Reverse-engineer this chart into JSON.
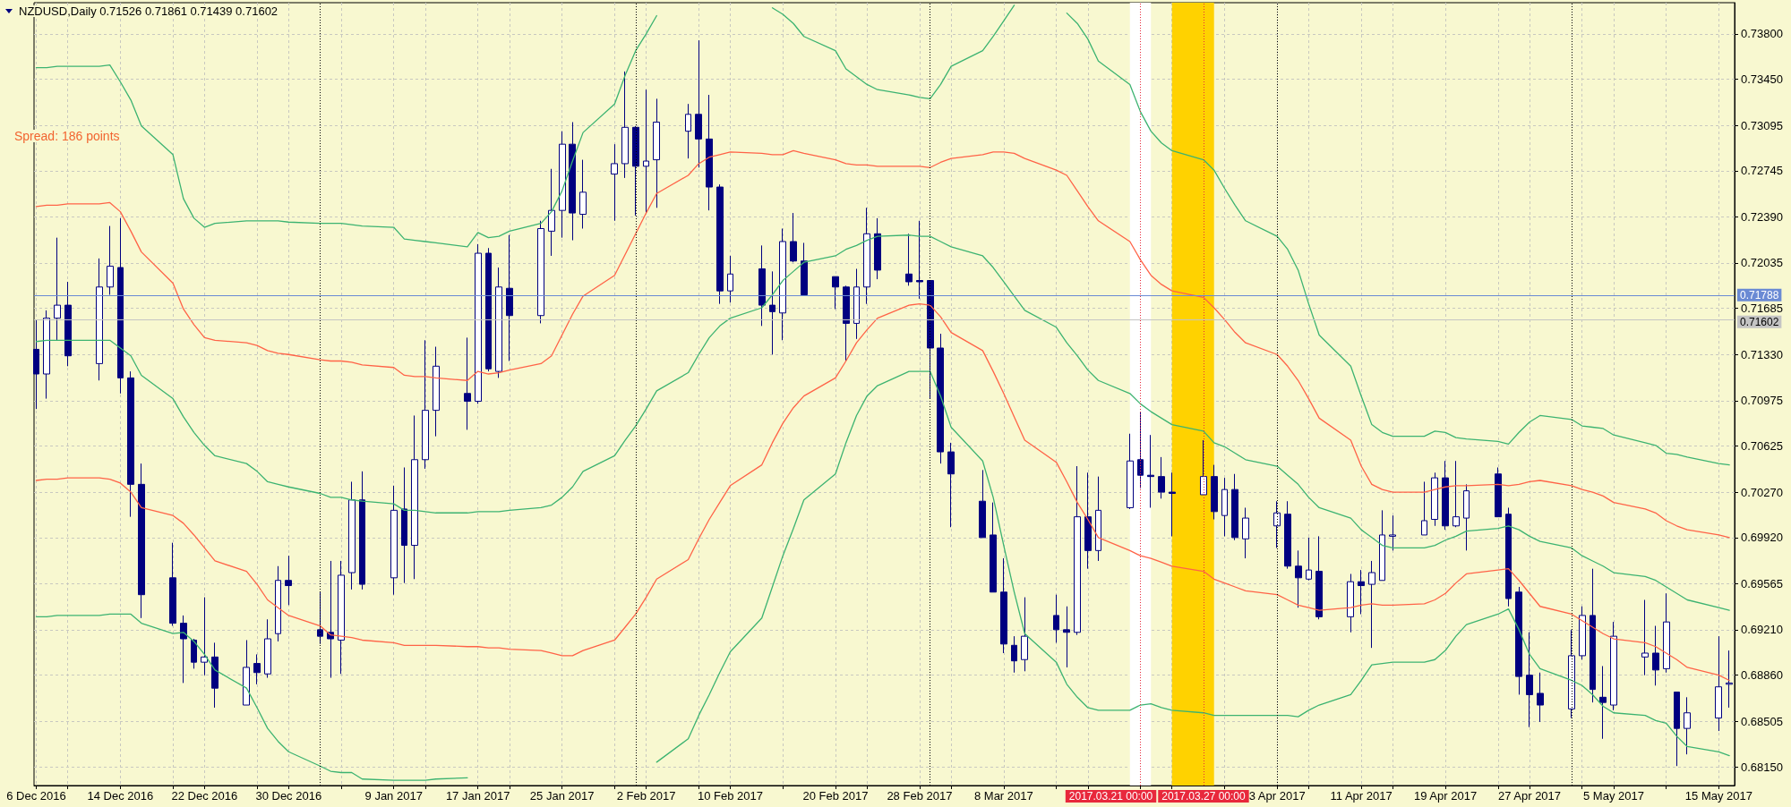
{
  "chart_data": {
    "type": "candlestick",
    "title": "NZDUSD,Daily 0.71526 0.71861 0.71439 0.71602",
    "annotations": [
      "Spread: 186 points"
    ],
    "x": [
      "2016-12-06",
      "2016-12-07",
      "2016-12-08",
      "2016-12-09",
      "2016-12-12",
      "2016-12-13",
      "2016-12-14",
      "2016-12-15",
      "2016-12-16",
      "2016-12-19",
      "2016-12-20",
      "2016-12-21",
      "2016-12-22",
      "2016-12-23",
      "2016-12-26",
      "2016-12-27",
      "2016-12-28",
      "2016-12-29",
      "2016-12-30",
      "2017-01-02",
      "2017-01-03",
      "2017-01-04",
      "2017-01-05",
      "2017-01-06",
      "2017-01-09",
      "2017-01-10",
      "2017-01-11",
      "2017-01-12",
      "2017-01-13",
      "2017-01-16",
      "2017-01-17",
      "2017-01-18",
      "2017-01-19",
      "2017-01-20",
      "2017-01-23",
      "2017-01-24",
      "2017-01-25",
      "2017-01-26",
      "2017-01-27",
      "2017-01-30",
      "2017-01-31",
      "2017-02-01",
      "2017-02-02",
      "2017-02-03",
      "2017-02-06",
      "2017-02-07",
      "2017-02-08",
      "2017-02-09",
      "2017-02-10",
      "2017-02-13",
      "2017-02-14",
      "2017-02-15",
      "2017-02-16",
      "2017-02-17",
      "2017-02-20",
      "2017-02-21",
      "2017-02-22",
      "2017-02-23",
      "2017-02-24",
      "2017-02-27",
      "2017-02-28",
      "2017-03-01",
      "2017-03-02",
      "2017-03-03",
      "2017-03-06",
      "2017-03-07",
      "2017-03-08",
      "2017-03-09",
      "2017-03-10",
      "2017-03-13",
      "2017-03-14",
      "2017-03-15",
      "2017-03-16",
      "2017-03-17",
      "2017-03-20",
      "2017-03-21",
      "2017-03-22",
      "2017-03-23",
      "2017-03-24",
      "2017-03-27",
      "2017-03-28",
      "2017-03-29",
      "2017-03-30",
      "2017-03-31",
      "2017-04-03",
      "2017-04-04",
      "2017-04-05",
      "2017-04-06",
      "2017-04-07",
      "2017-04-10",
      "2017-04-11",
      "2017-04-12",
      "2017-04-13",
      "2017-04-14",
      "2017-04-17",
      "2017-04-18",
      "2017-04-19",
      "2017-04-20",
      "2017-04-21",
      "2017-04-24",
      "2017-04-25",
      "2017-04-26",
      "2017-04-27",
      "2017-04-28",
      "2017-05-01",
      "2017-05-02",
      "2017-05-03",
      "2017-05-04",
      "2017-05-05",
      "2017-05-08",
      "2017-05-09",
      "2017-05-10",
      "2017-05-11",
      "2017-05-12",
      "2017-05-15",
      "2017-05-16"
    ],
    "xlim": [
      "2016-12-05T19:00",
      "2017-05-16T12:00"
    ],
    "xticks": [
      {
        "value": "2016-12-06",
        "label": "6 Dec 2016"
      },
      {
        "value": "2016-12-09",
        "label": null
      },
      {
        "value": "2016-12-14",
        "label": "14 Dec 2016"
      },
      {
        "value": "2016-12-19",
        "label": null
      },
      {
        "value": "2016-12-22",
        "label": "22 Dec 2016"
      },
      {
        "value": "2016-12-27",
        "label": null
      },
      {
        "value": "2016-12-30",
        "label": "30 Dec 2016"
      },
      {
        "value": "2017-01-04",
        "label": null
      },
      {
        "value": "2017-01-09",
        "label": "9 Jan 2017"
      },
      {
        "value": "2017-01-12",
        "label": null
      },
      {
        "value": "2017-01-17",
        "label": "17 Jan 2017"
      },
      {
        "value": "2017-01-20",
        "label": null
      },
      {
        "value": "2017-01-25",
        "label": "25 Jan 2017"
      },
      {
        "value": "2017-01-30",
        "label": null
      },
      {
        "value": "2017-02-02",
        "label": "2 Feb 2017"
      },
      {
        "value": "2017-02-07",
        "label": null
      },
      {
        "value": "2017-02-10",
        "label": "10 Feb 2017"
      },
      {
        "value": "2017-02-15",
        "label": null
      },
      {
        "value": "2017-02-20",
        "label": "20 Feb 2017"
      },
      {
        "value": "2017-02-23",
        "label": null
      },
      {
        "value": "2017-02-28",
        "label": "28 Feb 2017"
      },
      {
        "value": "2017-03-03",
        "label": null
      },
      {
        "value": "2017-03-08",
        "label": "8 Mar 2017"
      },
      {
        "value": "2017-03-13",
        "label": null
      },
      {
        "value": "2017-03-16",
        "label": null
      },
      {
        "value": "2017-03-21",
        "label": null
      },
      {
        "value": "2017-03-24",
        "label": null
      },
      {
        "value": "2017-03-29",
        "label": null
      },
      {
        "value": "2017-04-03",
        "label": "3 Apr 2017"
      },
      {
        "value": "2017-04-06",
        "label": null
      },
      {
        "value": "2017-04-11",
        "label": "11 Apr 2017"
      },
      {
        "value": "2017-04-14",
        "label": null
      },
      {
        "value": "2017-04-19",
        "label": "19 Apr 2017"
      },
      {
        "value": "2017-04-24",
        "label": null
      },
      {
        "value": "2017-04-27",
        "label": "27 Apr 2017"
      },
      {
        "value": "2017-05-02",
        "label": null
      },
      {
        "value": "2017-05-05",
        "label": "5 May 2017"
      },
      {
        "value": "2017-05-10",
        "label": null
      },
      {
        "value": "2017-05-15",
        "label": "15 May 2017"
      }
    ],
    "ylim": [
      0.6801,
      0.7404
    ],
    "yticks": [
      {
        "value": 0.738,
        "label": "0.73800"
      },
      {
        "value": 0.7345,
        "label": "0.73450"
      },
      0.73095,
      0.72745,
      {
        "value": 0.7239,
        "label": "0.72390"
      },
      0.72035,
      0.71685,
      {
        "value": 0.7133,
        "label": "0.71330"
      },
      0.70975,
      0.70625,
      {
        "value": 0.7027,
        "label": "0.70270"
      },
      {
        "value": 0.6992,
        "label": "0.69920"
      },
      0.69565,
      {
        "value": 0.6921,
        "label": "0.69210"
      },
      {
        "value": 0.6886,
        "label": "0.68860"
      },
      0.68505,
      {
        "value": 0.6815,
        "label": "0.68150"
      }
    ],
    "grid": true,
    "series": [
      {
        "color": "#000080",
        "colors": [
          "#000080",
          "#ffffff",
          "#ffffff",
          "#000080",
          "#ffffff",
          "#ffffff",
          "#000080",
          "#000080",
          "#000080",
          "#000080",
          "#000080",
          "#000080",
          "#ffffff",
          "#000080",
          "#ffffff",
          "#000080",
          "#ffffff",
          "#ffffff",
          "#000080",
          "#000080",
          "#000080",
          "#ffffff",
          "#ffffff",
          "#000080",
          "#ffffff",
          "#000080",
          "#ffffff",
          "#ffffff",
          "#ffffff",
          "#000080",
          "#ffffff",
          "#000080",
          "#ffffff",
          "#000080",
          "#ffffff",
          "#ffffff",
          "#ffffff",
          "#000080",
          "#ffffff",
          "#ffffff",
          "#ffffff",
          "#000080",
          "#ffffff",
          "#ffffff",
          "#ffffff",
          "#000080",
          "#000080",
          "#000080",
          "#ffffff",
          "#000080",
          "#000080",
          "#ffffff",
          "#000080",
          "#000080",
          "#000080",
          "#000080",
          "#ffffff",
          "#ffffff",
          "#000080",
          "#000080",
          "#000080",
          "#000080",
          "#000080",
          "#000080",
          "#000080",
          "#000080",
          "#000080",
          "#000080",
          "#ffffff",
          "#000080",
          "#000080",
          "#ffffff",
          "#000080",
          "#ffffff",
          "#ffffff",
          "#000080",
          "#000080",
          "#000080",
          "#000080",
          "#ffffff",
          "#000080",
          "#ffffff",
          "#000080",
          "#ffffff",
          "#ffffff",
          "#000080",
          "#000080",
          "#ffffff",
          "#000080",
          "#ffffff",
          "#000080",
          "#ffffff",
          "#ffffff",
          "#ffffff",
          "#ffffff",
          "#ffffff",
          "#000080",
          "#ffffff",
          "#ffffff",
          "#000080",
          "#000080",
          "#000080",
          "#000080",
          "#000080",
          "#ffffff",
          "#ffffff",
          "#000080",
          "#000080",
          "#ffffff",
          "#ffffff",
          "#000080",
          "#ffffff",
          "#000080",
          "#ffffff",
          "#ffffff",
          "#ffffff"
        ],
        "ohlc": [
          [
            0.7137,
            0.716,
            0.7091,
            0.7118
          ],
          [
            0.7118,
            0.7167,
            0.7099,
            0.7161
          ],
          [
            0.7161,
            0.7223,
            0.7144,
            0.7171
          ],
          [
            0.7171,
            0.7189,
            0.7124,
            0.7132
          ],
          [
            0.7126,
            0.7207,
            0.7113,
            0.7185
          ],
          [
            0.7185,
            0.7232,
            0.7179,
            0.7201
          ],
          [
            0.72,
            0.7238,
            0.7103,
            0.7115
          ],
          [
            0.7115,
            0.712,
            0.7008,
            0.7033
          ],
          [
            0.7033,
            0.7049,
            0.693,
            0.6948
          ],
          [
            0.6961,
            0.6988,
            0.6924,
            0.6926
          ],
          [
            0.6926,
            0.6932,
            0.688,
            0.6914
          ],
          [
            0.6913,
            0.6914,
            0.6891,
            0.6896
          ],
          [
            0.6896,
            0.6946,
            0.6886,
            0.69
          ],
          [
            0.69,
            0.6911,
            0.6861,
            0.6876
          ],
          [
            0.6863,
            0.6913,
            0.6863,
            0.6892
          ],
          [
            0.6895,
            0.6902,
            0.6879,
            0.6888
          ],
          [
            0.6887,
            0.6929,
            0.6884,
            0.6914
          ],
          [
            0.6918,
            0.697,
            0.6912,
            0.6959
          ],
          [
            0.6959,
            0.6978,
            0.694,
            0.6955
          ],
          [
            0.6921,
            0.695,
            0.691,
            0.6916
          ],
          [
            0.6919,
            0.6974,
            0.6884,
            0.6914
          ],
          [
            0.6913,
            0.6974,
            0.6887,
            0.6963
          ],
          [
            0.6965,
            0.7035,
            0.6952,
            0.7021
          ],
          [
            0.7021,
            0.7043,
            0.6952,
            0.6956
          ],
          [
            0.6961,
            0.7032,
            0.6948,
            0.7013
          ],
          [
            0.7014,
            0.7046,
            0.6957,
            0.6986
          ],
          [
            0.6986,
            0.7086,
            0.696,
            0.7052
          ],
          [
            0.7052,
            0.7144,
            0.7045,
            0.709
          ],
          [
            0.709,
            0.7139,
            0.707,
            0.7124
          ],
          [
            0.7103,
            0.7146,
            0.7075,
            0.7097
          ],
          [
            0.7097,
            0.7218,
            0.7095,
            0.7211
          ],
          [
            0.7211,
            0.7215,
            0.712,
            0.7122
          ],
          [
            0.712,
            0.72,
            0.7115,
            0.7185
          ],
          [
            0.7184,
            0.7225,
            0.7128,
            0.7163
          ],
          [
            0.7163,
            0.7236,
            0.7157,
            0.723
          ],
          [
            0.7228,
            0.7276,
            0.7209,
            0.7244
          ],
          [
            0.7244,
            0.7305,
            0.7223,
            0.7295
          ],
          [
            0.7295,
            0.7312,
            0.7221,
            0.7242
          ],
          [
            0.7241,
            0.7283,
            0.723,
            0.7258
          ],
          [
            0.7272,
            0.7295,
            0.7236,
            0.728
          ],
          [
            0.728,
            0.7351,
            0.7269,
            0.7308
          ],
          [
            0.7308,
            0.7309,
            0.724,
            0.7278
          ],
          [
            0.7278,
            0.7337,
            0.7242,
            0.7282
          ],
          [
            0.7283,
            0.733,
            0.7246,
            0.7312
          ],
          [
            0.7305,
            0.7326,
            0.7284,
            0.7318
          ],
          [
            0.7318,
            0.7375,
            0.7277,
            0.7299
          ],
          [
            0.7299,
            0.7333,
            0.7244,
            0.7262
          ],
          [
            0.7262,
            0.7264,
            0.7172,
            0.7182
          ],
          [
            0.7182,
            0.7209,
            0.7173,
            0.7195
          ],
          [
            0.7199,
            0.7217,
            0.7155,
            0.7171
          ],
          [
            0.7171,
            0.7197,
            0.7133,
            0.7166
          ],
          [
            0.7165,
            0.723,
            0.7144,
            0.722
          ],
          [
            0.722,
            0.7242,
            0.7204,
            0.7205
          ],
          [
            0.7205,
            0.7219,
            0.7178,
            0.7179
          ],
          [
            0.7193,
            0.7193,
            0.7168,
            0.7185
          ],
          [
            0.7185,
            0.7186,
            0.7128,
            0.7157
          ],
          [
            0.7157,
            0.7199,
            0.7145,
            0.7185
          ],
          [
            0.7185,
            0.7246,
            0.7172,
            0.7226
          ],
          [
            0.7226,
            0.7238,
            0.7191,
            0.7198
          ],
          [
            0.7195,
            0.7226,
            0.7186,
            0.7189
          ],
          [
            0.719,
            0.7236,
            0.7176,
            0.7189
          ],
          [
            0.719,
            0.719,
            0.7099,
            0.7138
          ],
          [
            0.7138,
            0.7149,
            0.7049,
            0.7058
          ],
          [
            0.7058,
            0.7065,
            0.7,
            0.7041
          ],
          [
            0.702,
            0.7044,
            0.6992,
            0.6992
          ],
          [
            0.6994,
            0.7019,
            0.695,
            0.695
          ],
          [
            0.695,
            0.6976,
            0.6903,
            0.691
          ],
          [
            0.6909,
            0.6916,
            0.6888,
            0.6897
          ],
          [
            0.6898,
            0.6946,
            0.6889,
            0.6916
          ],
          [
            0.6932,
            0.6948,
            0.6911,
            0.6921
          ],
          [
            0.6921,
            0.6939,
            0.6892,
            0.6919
          ],
          [
            0.6919,
            0.7047,
            0.6917,
            0.7008
          ],
          [
            0.7008,
            0.7042,
            0.6968,
            0.6982
          ],
          [
            0.6982,
            0.7039,
            0.6974,
            0.7013
          ],
          [
            0.7015,
            0.7072,
            0.7014,
            0.7051
          ],
          [
            0.7052,
            0.7089,
            0.703,
            0.704
          ],
          [
            0.704,
            0.7071,
            0.7015,
            0.7039
          ],
          [
            0.7039,
            0.7054,
            0.7022,
            0.7027
          ],
          [
            0.7027,
            0.7042,
            0.6993,
            0.7026
          ],
          [
            0.7025,
            0.7067,
            0.7025,
            0.7039
          ],
          [
            0.7039,
            0.7048,
            0.7006,
            0.7012
          ],
          [
            0.7009,
            0.7038,
            0.6993,
            0.7029
          ],
          [
            0.7029,
            0.7041,
            0.699,
            0.6992
          ],
          [
            0.6991,
            0.7015,
            0.6976,
            0.7007
          ],
          [
            0.7001,
            0.702,
            0.6984,
            0.7011
          ],
          [
            0.701,
            0.702,
            0.6968,
            0.697
          ],
          [
            0.697,
            0.6982,
            0.6938,
            0.6961
          ],
          [
            0.696,
            0.6992,
            0.6959,
            0.6967
          ],
          [
            0.6966,
            0.6993,
            0.6929,
            0.6931
          ],
          [
            0.6931,
            0.6964,
            0.6919,
            0.6958
          ],
          [
            0.6958,
            0.6967,
            0.6933,
            0.6955
          ],
          [
            0.6956,
            0.6974,
            0.6907,
            0.6965
          ],
          [
            0.6959,
            0.7013,
            0.6959,
            0.6994
          ],
          [
            0.6993,
            0.7009,
            0.6982,
            0.6994
          ],
          [
            0.6994,
            0.7035,
            0.6994,
            0.7005
          ],
          [
            0.7006,
            0.7042,
            0.7001,
            0.7038
          ],
          [
            0.7038,
            0.7051,
            0.6998,
            0.7001
          ],
          [
            0.7001,
            0.7051,
            0.7,
            0.7008
          ],
          [
            0.7007,
            0.7033,
            0.6982,
            0.7028
          ],
          [
            0.7041,
            0.7046,
            0.7008,
            0.7008
          ],
          [
            0.701,
            0.7015,
            0.6939,
            0.6945
          ],
          [
            0.695,
            0.6954,
            0.6871,
            0.6885
          ],
          [
            0.6886,
            0.6919,
            0.6846,
            0.6871
          ],
          [
            0.6872,
            0.6888,
            0.685,
            0.6863
          ],
          [
            0.686,
            0.6921,
            0.6853,
            0.6901
          ],
          [
            0.6901,
            0.6939,
            0.6898,
            0.6932
          ],
          [
            0.6932,
            0.6968,
            0.6865,
            0.6875
          ],
          [
            0.6869,
            0.6893,
            0.6837,
            0.6865
          ],
          [
            0.6863,
            0.6927,
            0.6859,
            0.6916
          ],
          [
            0.69,
            0.6944,
            0.6886,
            0.6903
          ],
          [
            0.6903,
            0.6924,
            0.6878,
            0.689
          ],
          [
            0.6891,
            0.6949,
            0.6888,
            0.6927
          ],
          [
            0.6873,
            0.6873,
            0.6816,
            0.6845
          ],
          [
            0.6845,
            0.6869,
            0.6825,
            0.6857
          ],
          [
            0.6853,
            0.6916,
            0.6843,
            0.6877
          ],
          [
            0.6879,
            0.6905,
            0.6861,
            0.688
          ]
        ]
      },
      {
        "type": "line",
        "color": "#3cb371",
        "values": [
          0.7354,
          0.7354,
          0.7355,
          0.7355,
          0.7355,
          0.7356,
          0.7343,
          0.7329,
          0.7309,
          0.7287,
          0.7253,
          0.7238,
          0.7231,
          0.7234,
          0.7236,
          0.7236,
          0.7236,
          0.7236,
          0.7235,
          0.7234,
          0.7234,
          0.7234,
          0.7233,
          0.7232,
          0.7231,
          0.7222,
          0.7221,
          0.722,
          0.7219,
          0.7216,
          0.7227,
          0.7223,
          0.7224,
          0.7228,
          0.7234,
          0.7243,
          0.7259,
          0.7282,
          0.7304,
          0.7326,
          0.7348,
          0.7367,
          0.738,
          0.7394,
          null,
          null,
          null,
          null,
          null,
          null,
          0.74,
          0.7395,
          0.7388,
          0.7378,
          0.7367,
          0.7353,
          0.7347,
          0.7341,
          0.7337,
          0.7333,
          0.7331,
          0.733,
          0.7341,
          0.7355,
          0.7367,
          0.7378,
          0.739,
          0.7402,
          null,
          null,
          0.7396,
          0.7388,
          0.7376,
          0.7359,
          0.7341,
          0.732,
          0.7305,
          0.7296,
          0.729,
          0.7283,
          0.7275,
          0.7261,
          0.7248,
          0.7236,
          0.7224,
          0.7214,
          0.7198,
          0.7172,
          0.7148,
          0.7124,
          0.7101,
          0.7079,
          0.7073,
          0.707,
          0.707,
          0.7074,
          0.7073,
          0.7069,
          0.7068,
          0.7066,
          0.7064,
          0.7073,
          0.7081,
          0.7086,
          0.7083,
          0.7078,
          0.7077,
          0.7076,
          0.7071,
          0.7065,
          0.7063,
          0.7057,
          0.7056,
          0.7054,
          0.7049,
          0.7048
        ]
      },
      {
        "type": "line",
        "color": "#3cb371",
        "values": [
          0.7143,
          0.7144,
          0.7144,
          0.7144,
          0.7144,
          0.7144,
          0.7138,
          0.7132,
          0.7117,
          0.7099,
          0.7085,
          0.7073,
          0.7063,
          0.7055,
          0.7049,
          0.7043,
          0.7035,
          0.7033,
          0.7031,
          0.7026,
          0.7023,
          0.7023,
          0.7021,
          0.702,
          0.7018,
          0.7013,
          0.7013,
          0.7012,
          0.7011,
          0.7011,
          0.7012,
          0.7012,
          0.7012,
          0.7013,
          0.7015,
          0.7017,
          0.7023,
          0.7031,
          0.7043,
          0.7055,
          0.7067,
          0.7078,
          0.7091,
          0.7105,
          0.7119,
          0.7133,
          0.7146,
          0.7155,
          0.7161,
          0.7169,
          0.7179,
          0.719,
          0.7197,
          0.7204,
          0.7209,
          0.7214,
          0.7217,
          0.7221,
          0.7224,
          0.7225,
          0.7224,
          0.7224,
          0.722,
          0.7216,
          0.7209,
          0.72,
          0.7189,
          0.7178,
          0.7167,
          0.7154,
          0.7142,
          0.7132,
          0.7121,
          0.7113,
          0.7103,
          0.7095,
          0.7089,
          0.7084,
          0.7079,
          0.7074,
          0.7065,
          0.7062,
          0.7057,
          0.7052,
          0.7047,
          0.704,
          0.7033,
          0.7023,
          0.7015,
          0.7007,
          0.6998,
          0.6992,
          0.6986,
          0.6984,
          0.6984,
          0.6986,
          0.699,
          0.6993,
          0.6997,
          0.6999,
          0.7001,
          0.6998,
          0.6993,
          0.6989,
          0.6984,
          0.6978,
          0.6974,
          0.697,
          0.6965,
          0.6962,
          0.6959,
          0.6954,
          0.6949,
          0.6944,
          0.6938,
          0.6936
        ]
      },
      {
        "type": "line",
        "color": "#3cb371",
        "values": [
          0.6931,
          0.6931,
          0.6932,
          0.6932,
          0.6932,
          0.6933,
          0.6933,
          0.6933,
          0.6926,
          0.6918,
          0.6919,
          0.6912,
          0.6902,
          0.689,
          0.6876,
          0.6861,
          0.6845,
          0.6835,
          0.6827,
          0.6816,
          0.6812,
          0.6811,
          0.6811,
          0.6806,
          0.6805,
          0.6805,
          0.6805,
          0.6805,
          0.6806,
          0.6807,
          null,
          null,
          null,
          null,
          null,
          null,
          null,
          null,
          null,
          null,
          null,
          null,
          null,
          0.6819,
          0.6837,
          0.6855,
          0.6871,
          0.6888,
          0.6904,
          0.693,
          0.6954,
          0.6978,
          0.6999,
          0.7021,
          0.7041,
          0.7065,
          0.7086,
          0.7101,
          0.7109,
          0.712,
          0.712,
          0.712,
          0.7101,
          0.7077,
          0.7051,
          0.7023,
          0.6986,
          0.695,
          0.6918,
          0.6896,
          0.6879,
          0.6869,
          0.6861,
          0.6859,
          0.6859,
          0.6863,
          0.6864,
          0.6861,
          0.6859,
          0.6857,
          0.6855,
          0.6855,
          0.6855,
          0.6855,
          0.6855,
          0.6855,
          0.6854,
          0.6859,
          0.6863,
          0.6871,
          0.6882,
          0.6894,
          0.6895,
          0.6896,
          0.6896,
          0.6898,
          0.6905,
          0.6916,
          0.6925,
          0.6933,
          0.6937,
          0.6921,
          0.6902,
          0.6891,
          0.6882,
          0.6878,
          0.6871,
          0.6862,
          0.6857,
          0.6855,
          0.6851,
          0.6849,
          0.6839,
          0.6831,
          0.6827,
          0.6824
        ]
      },
      {
        "type": "line",
        "color": "#ff6347",
        "values": [
          0.7247,
          0.7248,
          0.7248,
          0.7249,
          0.7249,
          0.725,
          0.7243,
          0.7228,
          0.7212,
          0.7188,
          0.7168,
          0.7156,
          0.7146,
          0.7144,
          0.7142,
          0.714,
          0.7136,
          0.7134,
          0.7133,
          0.7129,
          0.7128,
          0.7128,
          0.7127,
          0.7125,
          0.7123,
          0.7117,
          0.7116,
          0.7116,
          0.7115,
          0.7113,
          0.712,
          0.7118,
          0.7119,
          0.7121,
          0.7126,
          0.7132,
          0.7148,
          0.7164,
          0.7178,
          0.7194,
          0.721,
          0.7226,
          0.7242,
          0.7257,
          0.7271,
          0.728,
          0.7285,
          0.7287,
          0.7289,
          0.7288,
          0.7287,
          0.7287,
          0.729,
          0.7288,
          0.7283,
          0.728,
          0.7279,
          0.7279,
          0.7278,
          0.7278,
          0.7278,
          0.7277,
          0.7281,
          0.7284,
          0.7287,
          0.7289,
          0.7289,
          0.7288,
          0.7284,
          0.7275,
          0.7271,
          0.7259,
          0.7247,
          0.7236,
          0.722,
          0.7206,
          0.7194,
          0.7187,
          0.7182,
          0.7177,
          0.7169,
          0.716,
          0.715,
          0.7142,
          0.7133,
          0.7124,
          0.7113,
          0.7099,
          0.7084,
          0.7067,
          0.7047,
          0.7033,
          0.7029,
          0.7027,
          0.7027,
          0.7029,
          0.7031,
          0.7032,
          0.7032,
          0.7033,
          0.7032,
          0.7033,
          0.7035,
          0.7036,
          0.7032,
          0.7029,
          0.7027,
          0.7024,
          0.7019,
          0.7014,
          0.7011,
          0.7005,
          0.7001,
          0.6998,
          0.6994,
          0.6992
        ]
      },
      {
        "type": "line",
        "color": "#ff6347",
        "values": [
          0.7036,
          0.7037,
          0.7037,
          0.7038,
          0.7038,
          0.7037,
          0.7034,
          0.7027,
          0.7015,
          0.7009,
          0.7003,
          0.6994,
          0.6984,
          0.6974,
          0.6966,
          0.6956,
          0.6944,
          0.6938,
          0.6932,
          0.6924,
          0.6917,
          0.6916,
          0.6915,
          0.6913,
          0.6911,
          0.6909,
          0.6909,
          0.6909,
          0.6909,
          0.6908,
          0.6908,
          0.6907,
          0.6907,
          0.6906,
          0.6905,
          0.6903,
          0.6901,
          0.6901,
          0.6905,
          0.6913,
          0.6923,
          0.6933,
          0.6946,
          0.696,
          0.6975,
          0.6991,
          0.7006,
          0.7019,
          0.7032,
          0.7048,
          0.7065,
          0.708,
          0.7092,
          0.7101,
          0.7115,
          0.7128,
          0.7142,
          0.7152,
          0.7161,
          0.7171,
          0.7172,
          0.7171,
          0.7162,
          0.715,
          0.7136,
          0.712,
          0.7103,
          0.7085,
          0.7067,
          0.705,
          0.7035,
          0.7019,
          0.7006,
          0.6992,
          0.6982,
          0.6978,
          0.6976,
          0.6973,
          0.697,
          0.6966,
          0.696,
          0.6957,
          0.6954,
          0.6951,
          0.6948,
          0.6944,
          0.694,
          0.6938,
          0.6936,
          0.6938,
          0.694,
          0.6941,
          0.694,
          0.694,
          0.6941,
          0.6944,
          0.6949,
          0.6957,
          0.6964,
          0.6967,
          0.6968,
          0.6959,
          0.6949,
          0.6939,
          0.6933,
          0.6928,
          0.6923,
          0.6918,
          0.6914,
          0.6911,
          0.6908,
          0.6903,
          0.6898,
          0.6892,
          0.6886,
          0.6882
        ]
      }
    ],
    "ref_lines": [
      {
        "axis": "y",
        "value": 0.71788,
        "label": "0.71788",
        "color": "#6a8ad4"
      },
      {
        "axis": "y",
        "value": 0.71602,
        "label": "0.71602",
        "color": "#c4c4c4"
      },
      {
        "axis": "x",
        "value": "2017-03-21",
        "label": "2017.03.21 00:00",
        "color": "#e8283c",
        "line_style": "dotted"
      },
      {
        "axis": "x",
        "value": "2017-03-27",
        "label": "2017.03.27 00:00",
        "color": "#e8283c",
        "line_style": "dotted"
      },
      {
        "axis": "x",
        "value": "2017-01-02",
        "color": "#000000",
        "line_style": "dotted"
      },
      {
        "axis": "x",
        "value": "2017-02-01",
        "color": "#000000",
        "line_style": "dotted"
      },
      {
        "axis": "x",
        "value": "2017-03-01",
        "color": "#000000",
        "line_style": "dotted"
      },
      {
        "axis": "x",
        "value": "2017-04-03",
        "color": "#000000",
        "line_style": "dotted"
      },
      {
        "axis": "x",
        "value": "2017-05-01",
        "color": "#000000",
        "line_style": "dotted"
      }
    ],
    "bands": [
      {
        "axis": "x",
        "from": "2017-03-20",
        "to": "2017-03-22",
        "color": "#ffffff"
      },
      {
        "axis": "x",
        "from": "2017-03-24",
        "to": "2017-03-28",
        "color": "#ffd200"
      }
    ]
  }
}
